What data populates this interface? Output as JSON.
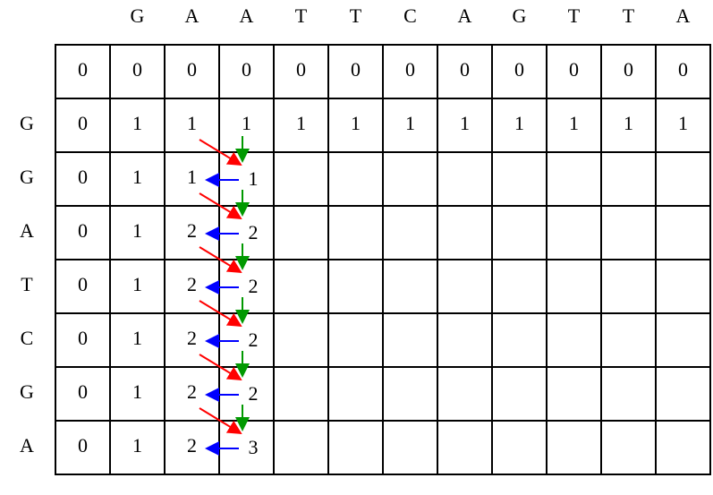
{
  "column_headers": [
    "G",
    "A",
    {
      "text": "A",
      "color": "#00cc00"
    },
    "T",
    "T",
    "C",
    "A",
    "G",
    "T",
    "T",
    "A"
  ],
  "row_headers": [
    null,
    "G",
    "G",
    {
      "text": "A",
      "color": "#00cc00"
    },
    "T",
    "C",
    "G",
    {
      "text": "A",
      "color": "#00cc00"
    }
  ],
  "rows": [
    [
      "0",
      "0",
      "0",
      "0",
      "0",
      "0",
      "0",
      "0",
      "0",
      "0",
      "0",
      "0"
    ],
    [
      "0",
      "1",
      "1",
      "1",
      "1",
      "1",
      "1",
      "1",
      "1",
      "1",
      "1",
      "1"
    ],
    [
      "0",
      "1",
      "1",
      {
        "text": "1",
        "color": "#800080"
      },
      null,
      null,
      null,
      null,
      null,
      null,
      null,
      null
    ],
    [
      "0",
      "1",
      "2",
      {
        "text": "2",
        "color": "#ff00ff"
      },
      null,
      null,
      null,
      null,
      null,
      null,
      null,
      null
    ],
    [
      "0",
      "1",
      "2",
      {
        "text": "2",
        "color": "#800080"
      },
      null,
      null,
      null,
      null,
      null,
      null,
      null,
      null
    ],
    [
      "0",
      "1",
      "2",
      {
        "text": "2",
        "color": "#800080"
      },
      null,
      null,
      null,
      null,
      null,
      null,
      null,
      null
    ],
    [
      "0",
      "1",
      "2",
      {
        "text": "2",
        "color": "#800080"
      },
      null,
      null,
      null,
      null,
      null,
      null,
      null,
      null
    ],
    [
      "0",
      "1",
      "2",
      {
        "text": "3",
        "color": "#ff00ff"
      },
      null,
      null,
      null,
      null,
      null,
      null,
      null,
      null
    ]
  ]
}
